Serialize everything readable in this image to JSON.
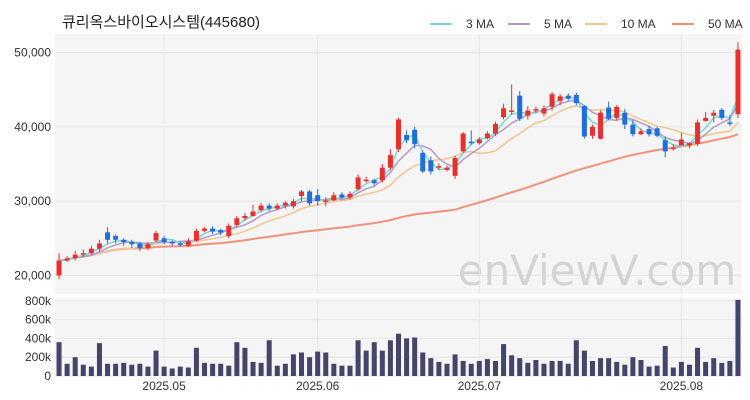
{
  "title": "큐리옥스바이오시스템(445680)",
  "watermark": "enViewV.com",
  "chart_data": {
    "type": "candlestick",
    "legend": [
      {
        "label": "3 MA",
        "color": "#7fd3d6"
      },
      {
        "label": "5 MA",
        "color": "#b39ac8"
      },
      {
        "label": "10 MA",
        "color": "#f3c48f"
      },
      {
        "label": "50 MA",
        "color": "#f2917a"
      }
    ],
    "colors": {
      "up": "#e8312f",
      "down": "#1e6fd9",
      "volume": "#45456a"
    },
    "price_axis": {
      "ylim": [
        17500,
        52500
      ],
      "ticks": [
        20000,
        30000,
        40000,
        50000
      ],
      "tick_labels": [
        "20,000",
        "30,000",
        "40,000",
        "50,000"
      ]
    },
    "volume_axis": {
      "ylim": [
        0,
        830000
      ],
      "ticks": [
        0,
        200000,
        400000,
        600000,
        800000
      ],
      "tick_labels": [
        "0",
        "200k",
        "400k",
        "600k",
        "800k"
      ]
    },
    "x_labels": [
      {
        "index": 13,
        "label": "2025.05"
      },
      {
        "index": 32,
        "label": "2025.06"
      },
      {
        "index": 52,
        "label": "2025.07"
      },
      {
        "index": 77,
        "label": "2025.08"
      }
    ],
    "candles": [
      [
        20000,
        22000,
        23000,
        19500,
        360000
      ],
      [
        22000,
        22300,
        22600,
        21800,
        130000
      ],
      [
        22300,
        22800,
        23300,
        22000,
        200000
      ],
      [
        22800,
        23000,
        23500,
        22500,
        120000
      ],
      [
        23000,
        23600,
        24000,
        22800,
        100000
      ],
      [
        23600,
        24300,
        24800,
        23200,
        350000
      ],
      [
        25800,
        24800,
        26500,
        24300,
        130000
      ],
      [
        25300,
        24800,
        25500,
        24300,
        130000
      ],
      [
        24800,
        24500,
        25000,
        24000,
        140000
      ],
      [
        24500,
        24200,
        24800,
        23700,
        120000
      ],
      [
        24300,
        23700,
        24500,
        23300,
        130000
      ],
      [
        23700,
        24200,
        24500,
        23400,
        100000
      ],
      [
        24700,
        25700,
        26000,
        24500,
        270000
      ],
      [
        25000,
        24500,
        25300,
        24200,
        100000
      ],
      [
        24500,
        24300,
        24700,
        24000,
        80000
      ],
      [
        24300,
        24200,
        24500,
        23900,
        100000
      ],
      [
        24000,
        24600,
        25000,
        23800,
        90000
      ],
      [
        24700,
        26000,
        26300,
        24500,
        300000
      ],
      [
        26000,
        26300,
        26500,
        25800,
        140000
      ],
      [
        26300,
        25900,
        26600,
        25600,
        130000
      ],
      [
        26100,
        25800,
        26300,
        25400,
        130000
      ],
      [
        25300,
        26700,
        27000,
        25000,
        110000
      ],
      [
        26800,
        27700,
        28000,
        26500,
        360000
      ],
      [
        27700,
        28000,
        28400,
        27400,
        300000
      ],
      [
        28000,
        28600,
        29500,
        27900,
        150000
      ],
      [
        28800,
        29400,
        29800,
        28500,
        140000
      ],
      [
        29400,
        29000,
        29700,
        28700,
        380000
      ],
      [
        29000,
        29400,
        29700,
        28800,
        110000
      ],
      [
        29400,
        29800,
        30000,
        29000,
        130000
      ],
      [
        29300,
        30000,
        30300,
        29000,
        230000
      ],
      [
        30700,
        31300,
        31500,
        30000,
        250000
      ],
      [
        31300,
        29700,
        31500,
        29400,
        200000
      ],
      [
        30800,
        30000,
        31600,
        29400,
        260000
      ],
      [
        29900,
        30100,
        30500,
        29300,
        250000
      ],
      [
        30100,
        30800,
        31200,
        30000,
        130000
      ],
      [
        30900,
        30500,
        31200,
        30300,
        110000
      ],
      [
        30500,
        31000,
        31300,
        30200,
        110000
      ],
      [
        31600,
        33200,
        33600,
        31400,
        380000
      ],
      [
        32700,
        32900,
        33300,
        32500,
        270000
      ],
      [
        32800,
        32400,
        33000,
        32100,
        360000
      ],
      [
        32800,
        34500,
        35000,
        32500,
        270000
      ],
      [
        34500,
        36200,
        37000,
        34200,
        380000
      ],
      [
        37000,
        41000,
        41200,
        36600,
        450000
      ],
      [
        38900,
        38200,
        39500,
        37800,
        400000
      ],
      [
        39600,
        37700,
        40000,
        37100,
        410000
      ],
      [
        36500,
        34000,
        36800,
        33800,
        250000
      ],
      [
        35500,
        34000,
        36000,
        33600,
        190000
      ],
      [
        34500,
        34700,
        35100,
        34200,
        150000
      ],
      [
        34200,
        34500,
        34800,
        34000,
        130000
      ],
      [
        33400,
        35800,
        36100,
        33000,
        230000
      ],
      [
        36700,
        39100,
        39300,
        36500,
        160000
      ],
      [
        38000,
        37900,
        39500,
        37600,
        130000
      ],
      [
        37800,
        38300,
        38600,
        37600,
        160000
      ],
      [
        38500,
        39100,
        39400,
        38300,
        180000
      ],
      [
        39100,
        40400,
        40700,
        38800,
        160000
      ],
      [
        41300,
        42500,
        43100,
        41000,
        340000
      ],
      [
        42200,
        42200,
        45700,
        41600,
        220000
      ],
      [
        44200,
        41100,
        44800,
        40800,
        190000
      ],
      [
        41500,
        42200,
        42800,
        41000,
        140000
      ],
      [
        42400,
        42400,
        42700,
        41900,
        170000
      ],
      [
        41800,
        42500,
        42900,
        41400,
        130000
      ],
      [
        42700,
        44400,
        44700,
        42200,
        160000
      ],
      [
        43500,
        44100,
        44400,
        42900,
        160000
      ],
      [
        44200,
        43800,
        44500,
        43500,
        130000
      ],
      [
        44300,
        43200,
        44600,
        42900,
        380000
      ],
      [
        42800,
        38700,
        42900,
        38400,
        270000
      ],
      [
        38800,
        40000,
        40300,
        38400,
        160000
      ],
      [
        38400,
        41900,
        42200,
        38300,
        190000
      ],
      [
        42600,
        41100,
        43400,
        40900,
        190000
      ],
      [
        41200,
        42700,
        42900,
        40900,
        150000
      ],
      [
        41900,
        40300,
        42400,
        39700,
        120000
      ],
      [
        40300,
        39000,
        40900,
        38700,
        200000
      ],
      [
        39000,
        39400,
        39800,
        38900,
        170000
      ],
      [
        39700,
        39000,
        40100,
        38700,
        100000
      ],
      [
        39800,
        38800,
        40000,
        38600,
        110000
      ],
      [
        38200,
        36700,
        38700,
        35900,
        320000
      ],
      [
        37200,
        37200,
        37700,
        36800,
        90000
      ],
      [
        37500,
        38300,
        39200,
        37500,
        150000
      ],
      [
        37500,
        37800,
        37900,
        37100,
        120000
      ],
      [
        37700,
        40600,
        41000,
        37400,
        300000
      ],
      [
        40800,
        41200,
        42000,
        40700,
        150000
      ],
      [
        41500,
        41900,
        42300,
        40600,
        190000
      ],
      [
        42300,
        41200,
        42500,
        40900,
        140000
      ],
      [
        40600,
        40500,
        41600,
        40100,
        160000
      ],
      [
        41700,
        50400,
        51400,
        41200,
        810000
      ]
    ]
  }
}
